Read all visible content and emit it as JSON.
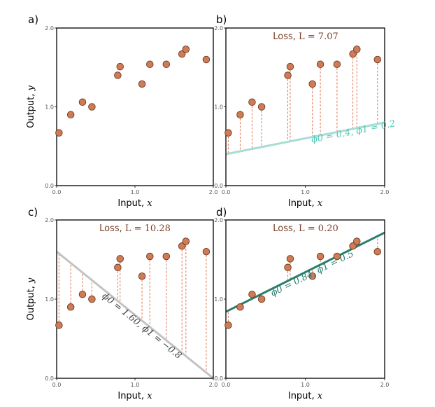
{
  "colors": {
    "point_fill": "#cf7b55",
    "point_edge": "#6b3a23",
    "residual": "#e0754e",
    "loss_text": "#7a3f2a"
  },
  "chart_data": [
    {
      "panel": "a)",
      "type": "scatter",
      "x": [
        0.03,
        0.18,
        0.33,
        0.45,
        0.78,
        0.81,
        1.09,
        1.19,
        1.4,
        1.6,
        1.65,
        1.91
      ],
      "y": [
        0.67,
        0.9,
        1.06,
        1.0,
        1.4,
        1.51,
        1.29,
        1.54,
        1.54,
        1.67,
        1.73,
        1.6
      ],
      "xlabel": "Input, x",
      "ylabel": "Output, y",
      "xlim": [
        0.0,
        2.0
      ],
      "ylim": [
        0.0,
        2.0
      ],
      "xticks": [
        "0.0",
        "1.0",
        "2.0"
      ],
      "yticks": [
        "0.0",
        "1.0",
        "2.0"
      ]
    },
    {
      "panel": "b)",
      "type": "scatter",
      "x": [
        0.03,
        0.18,
        0.33,
        0.45,
        0.78,
        0.81,
        1.09,
        1.19,
        1.4,
        1.6,
        1.65,
        1.91
      ],
      "y": [
        0.67,
        0.9,
        1.06,
        1.0,
        1.4,
        1.51,
        1.29,
        1.54,
        1.54,
        1.67,
        1.73,
        1.6
      ],
      "line": {
        "phi0": 0.4,
        "phi1": 0.2,
        "label": "ϕ0 = 0.4, ϕ1 = 0.2",
        "color": "#a6ddd3"
      },
      "loss_label": "Loss, ",
      "loss_value": "L = 7.07",
      "xlabel": "Input, x",
      "ylabel": "",
      "xlim": [
        0.0,
        2.0
      ],
      "ylim": [
        0.0,
        2.0
      ],
      "xticks": [
        "0.0",
        "1.0",
        "2.0"
      ],
      "yticks": [
        "0.0",
        "1.0",
        "2.0"
      ]
    },
    {
      "panel": "c)",
      "type": "scatter",
      "x": [
        0.03,
        0.18,
        0.33,
        0.45,
        0.78,
        0.81,
        1.09,
        1.19,
        1.4,
        1.6,
        1.65,
        1.91
      ],
      "y": [
        0.67,
        0.9,
        1.06,
        1.0,
        1.4,
        1.51,
        1.29,
        1.54,
        1.54,
        1.67,
        1.73,
        1.6
      ],
      "line": {
        "phi0": 1.6,
        "phi1": -0.8,
        "label": "ϕ0 = 1.60, ϕ1 = −0.8",
        "color": "#c2c4c4"
      },
      "loss_label": "Loss, ",
      "loss_value": "L = 10.28",
      "xlabel": "Input, x",
      "ylabel": "Output, y",
      "xlim": [
        0.0,
        2.0
      ],
      "ylim": [
        0.0,
        2.0
      ],
      "xticks": [
        "0.0",
        "1.0",
        "2.0"
      ],
      "yticks": [
        "0.0",
        "1.0",
        "2.0"
      ]
    },
    {
      "panel": "d)",
      "type": "scatter",
      "x": [
        0.03,
        0.18,
        0.33,
        0.45,
        0.78,
        0.81,
        1.09,
        1.19,
        1.4,
        1.6,
        1.65,
        1.91
      ],
      "y": [
        0.67,
        0.9,
        1.06,
        1.0,
        1.4,
        1.51,
        1.29,
        1.54,
        1.54,
        1.67,
        1.73,
        1.6
      ],
      "line": {
        "phi0": 0.84,
        "phi1": 0.5,
        "label": "ϕ0 = 0.84, ϕ1 = 0.5",
        "color": "#2b7d6c"
      },
      "loss_label": "Loss, ",
      "loss_value": "L = 0.20",
      "xlabel": "Input, x",
      "ylabel": "",
      "xlim": [
        0.0,
        2.0
      ],
      "ylim": [
        0.0,
        2.0
      ],
      "xticks": [
        "0.0",
        "1.0",
        "2.0"
      ],
      "yticks": [
        "0.0",
        "1.0",
        "2.0"
      ]
    }
  ]
}
